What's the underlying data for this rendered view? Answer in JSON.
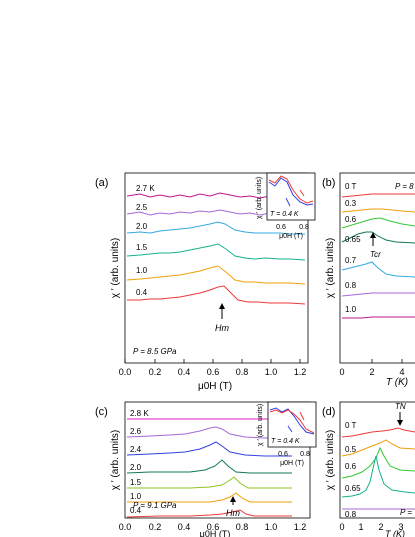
{
  "figure": {
    "panels": [
      {
        "id": "a",
        "tag": "(a)",
        "xlabel": "μ0H (T)",
        "ylabel": "χ ′ (arb. units)",
        "xticks": [
          "0.0",
          "0.2",
          "0.4",
          "0.6",
          "0.8",
          "1.0",
          "1.2"
        ],
        "curve_labels": [
          "2.7 K",
          "2.5",
          "2.0",
          "1.5",
          "1.0",
          "0.4"
        ],
        "pressure": "P = 8.5 GPa",
        "marker": "Hm",
        "inset": {
          "ylabel": "χ ′ (arb. units)",
          "xlabel": "μ0H (T)",
          "xticks": [
            "0.6",
            "0.8"
          ],
          "temp": "T = 0.4 K"
        }
      },
      {
        "id": "b",
        "tag": "(b)",
        "xlabel": "T (K)",
        "ylabel": "χ ′ (arb. units)",
        "xticks": [
          "0",
          "2",
          "4"
        ],
        "curve_labels": [
          "0 T",
          "0.3",
          "0.6",
          "0.65",
          "0.7",
          "0.8",
          "1.0"
        ],
        "pressure": "P = 8",
        "marker": "Tcr"
      },
      {
        "id": "c",
        "tag": "(c)",
        "xlabel": "μ0H (T)",
        "ylabel": "χ ′ (arb. units)",
        "xticks": [
          "0.0",
          "0.2",
          "0.4",
          "0.6",
          "0.8",
          "1.0",
          "1.2"
        ],
        "curve_labels": [
          "2.8 K",
          "2.6",
          "2.4",
          "2.0",
          "1.5",
          "1.0",
          "0.4"
        ],
        "pressure": "P = 9.1 GPa",
        "marker": "Hm",
        "inset": {
          "ylabel": "χ ′ (arb. units)",
          "xlabel": "μ0H (T)",
          "xticks": [
            "0.6",
            "0.8"
          ],
          "temp": "T = 0.4 K"
        }
      },
      {
        "id": "d",
        "tag": "(d)",
        "xlabel": "T (K)",
        "ylabel": "χ ′ (arb. units)",
        "xticks": [
          "0",
          "1",
          "2",
          "3"
        ],
        "curve_labels": [
          "0 T",
          "0.5",
          "0.6",
          "0.65",
          "0.8"
        ],
        "pressure": "P =",
        "marker": "TN"
      }
    ]
  },
  "colors": {
    "magenta": "#c0148c",
    "purple": "#a36ad6",
    "cyan": "#34a9e0",
    "teal": "#14b38c",
    "yellowgreen": "#8fc31f",
    "orange": "#f0a00a",
    "red": "#ee3a3a",
    "blue": "#3040e0",
    "darkgreen": "#107a50",
    "green": "#34c834",
    "lightred": "#f06262"
  }
}
